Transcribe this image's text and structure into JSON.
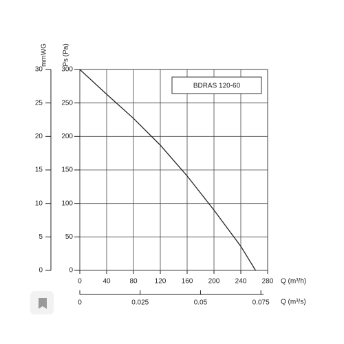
{
  "chart_data": {
    "type": "line",
    "xlabel": "Q (m³/h)",
    "x2label": "Q (m³/s)",
    "ylabel": "Ps (Pa)",
    "y2label": "mmWG",
    "x": [
      0,
      40,
      80,
      120,
      160,
      200,
      240,
      262
    ],
    "series": [
      {
        "name": "BDRAS 120-60",
        "color": "#222222",
        "values": [
          300,
          263,
          227,
          187,
          141,
          90,
          36,
          0
        ]
      }
    ],
    "xlim": [
      0,
      280
    ],
    "xticks": [
      0,
      40,
      80,
      120,
      160,
      200,
      240,
      280
    ],
    "x2lim": [
      0,
      0.0778
    ],
    "x2ticks": [
      0,
      0.025,
      0.05,
      0.075
    ],
    "ylim": [
      0,
      300
    ],
    "yticks": [
      0,
      50,
      100,
      150,
      200,
      250,
      300
    ],
    "y2lim": [
      0,
      30
    ],
    "y2ticks": [
      0,
      5,
      10,
      15,
      20,
      25,
      30
    ],
    "grid": true
  }
}
